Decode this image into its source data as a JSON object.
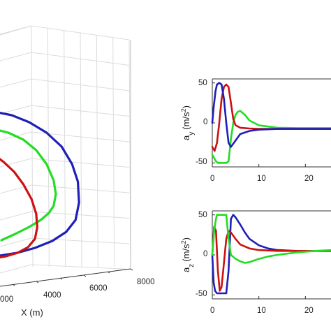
{
  "colors": {
    "blue": "#1f1fb8",
    "red": "#cc1111",
    "green": "#22dd22",
    "grid": "#dcdcdc",
    "axis": "#333333"
  },
  "chart_data": [
    {
      "type": "line",
      "projection": "3d",
      "grid": true,
      "xlabel": "X (m)",
      "x_ticks": [
        "4000",
        "6000",
        "8000"
      ],
      "x_ticks_partial": [
        "000"
      ],
      "series": [
        {
          "color": "blue",
          "x": [
            0,
            1500,
            3000,
            4500,
            5800,
            6700,
            7200,
            7300,
            7000,
            6200,
            5000,
            3500,
            2000,
            500
          ],
          "y": [
            160,
            165,
            175,
            190,
            210,
            235,
            260,
            290,
            315,
            332,
            345,
            355,
            362,
            366
          ]
        },
        {
          "color": "green",
          "x": [
            0,
            1200,
            2500,
            3600,
            4500,
            5100,
            5300,
            5100,
            4700,
            4000,
            3000,
            1800,
            600
          ],
          "y": [
            185,
            190,
            200,
            215,
            235,
            258,
            278,
            295,
            305,
            315,
            325,
            335,
            344
          ]
        },
        {
          "color": "red",
          "x": [
            0,
            800,
            1700,
            2500,
            3200,
            3600,
            3700,
            3500,
            2900,
            2000,
            1000,
            0
          ],
          "y": [
            222,
            232,
            246,
            264,
            285,
            306,
            325,
            342,
            354,
            362,
            367,
            370
          ]
        }
      ]
    },
    {
      "type": "line",
      "ylabel": "a_y (m/s^2)",
      "ylabel_main": "a",
      "ylabel_sub": "y",
      "ylabel_unit": "(m/s",
      "ylabel_sup": "2",
      "ylabel_close": ")",
      "xlim": [
        0,
        25.8
      ],
      "ylim": [
        -55,
        55
      ],
      "x_ticks": [
        "0",
        "10",
        "20"
      ],
      "y_ticks": [
        "50",
        "0",
        "-50"
      ],
      "series": [
        {
          "color": "green",
          "x": [
            0,
            0.4,
            0.8,
            1.2,
            2.0,
            3.0,
            3.5,
            4.0,
            4.5,
            5.0,
            5.5,
            6.0,
            7.0,
            8.0,
            10,
            14,
            18,
            22,
            25.8
          ],
          "y": [
            -40,
            -44,
            -48,
            -50,
            -50,
            -50,
            -48,
            -20,
            0,
            10,
            14,
            15,
            10,
            3,
            -3,
            -6,
            -6.5,
            -6.5,
            -6.5
          ]
        },
        {
          "color": "red",
          "x": [
            0,
            0.5,
            1.0,
            1.5,
            2.0,
            2.5,
            3.0,
            3.5,
            4.0,
            4.5,
            5.0,
            6.0,
            8.0,
            10,
            14,
            20,
            25.8
          ],
          "y": [
            -30,
            -35,
            -25,
            0,
            30,
            45,
            48,
            45,
            25,
            5,
            -3,
            -6,
            -7,
            -7.5,
            -7.5,
            -7.5,
            -7.5
          ]
        },
        {
          "color": "blue",
          "x": [
            0,
            0.3,
            0.7,
            1.0,
            1.5,
            2.0,
            2.5,
            3.0,
            3.5,
            4.0,
            5.0,
            6.0,
            8.0,
            10,
            14,
            20,
            25.8
          ],
          "y": [
            0,
            20,
            40,
            48,
            50,
            48,
            30,
            0,
            -25,
            -30,
            -22,
            -14,
            -10,
            -8.5,
            -7.5,
            -7.5,
            -7.5
          ]
        }
      ]
    },
    {
      "type": "line",
      "ylabel": "a_z (m/s^2)",
      "ylabel_main": "a",
      "ylabel_sub": "z",
      "ylabel_unit": "(m/s",
      "ylabel_sup": "2",
      "ylabel_close": ")",
      "xlim": [
        0,
        25.8
      ],
      "ylim": [
        -55,
        55
      ],
      "x_ticks": [
        "0",
        "10",
        "20"
      ],
      "y_ticks": [
        "50",
        "0",
        "-50"
      ],
      "series": [
        {
          "color": "blue",
          "x": [
            0,
            0.3,
            0.6,
            1.0,
            2.0,
            3.0,
            3.5,
            4.0,
            4.5,
            5.0,
            6.0,
            7.0,
            8.0,
            10,
            12,
            14,
            18,
            22,
            25.8
          ],
          "y": [
            0,
            -35,
            -45,
            -48,
            -48,
            -48,
            -20,
            45,
            50,
            47,
            38,
            28,
            20,
            12,
            8,
            6,
            5,
            5,
            5
          ]
        },
        {
          "color": "red",
          "x": [
            0,
            0.4,
            0.8,
            1.2,
            1.6,
            2.0,
            2.5,
            3.0,
            3.5,
            4.0,
            5.0,
            6.0,
            8.0,
            10,
            14,
            20,
            25.8
          ],
          "y": [
            0,
            35,
            30,
            -20,
            -45,
            -40,
            -10,
            20,
            30,
            28,
            20,
            13,
            8,
            6,
            5,
            5,
            5
          ]
        },
        {
          "color": "green",
          "x": [
            0,
            0.4,
            0.8,
            1.0,
            2.0,
            3.0,
            3.5,
            4.0,
            5.0,
            6.0,
            7.0,
            8.0,
            9.0,
            10,
            12,
            14,
            18,
            22,
            25.8
          ],
          "y": [
            0,
            30,
            45,
            50,
            50,
            50,
            20,
            0,
            -5,
            -8,
            -10,
            -9,
            -7,
            -5,
            -2,
            0,
            3,
            5,
            6
          ]
        }
      ]
    }
  ]
}
